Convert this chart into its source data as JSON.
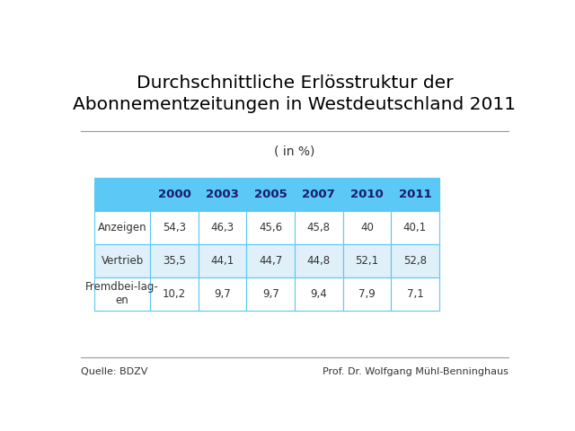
{
  "title": "Durchschnittliche Erlösstruktur der\nAbonnementzeitungen in Westdeutschland 2011",
  "subtitle": "( in %)",
  "source_left": "Quelle: BDZV",
  "source_right": "Prof. Dr. Wolfgang Mühl-Benninghaus",
  "columns": [
    "",
    "2000",
    "2003",
    "2005",
    "2007",
    "2010",
    "2011"
  ],
  "rows": [
    [
      "Anzeigen",
      "54,3",
      "46,3",
      "45,6",
      "45,8",
      "40",
      "40,1"
    ],
    [
      "Vertrieb",
      "35,5",
      "44,1",
      "44,7",
      "44,8",
      "52,1",
      "52,8"
    ],
    [
      "Fremdbei-lag-\nen",
      "10,2",
      "9,7",
      "9,7",
      "9,4",
      "7,9",
      "7,1"
    ]
  ],
  "header_bg": "#5bc8f5",
  "row_bg_even": "#dff0f9",
  "row_bg_odd": "#ffffff",
  "border_color": "#5bc8f5",
  "text_color": "#333333",
  "header_text_color": "#1a1a6e",
  "title_color": "#000000",
  "background_color": "#ffffff",
  "separator_line_color": "#999999"
}
